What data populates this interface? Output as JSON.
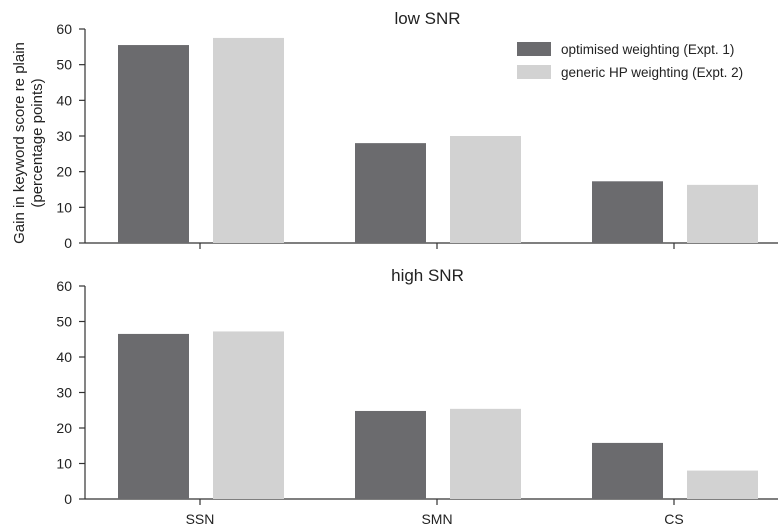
{
  "chart_data": {
    "type": "bar",
    "ylabel_line1": "Gain in keyword score re plain",
    "ylabel_line2": "(percentage points)",
    "categories": [
      "SSN",
      "SMN",
      "CS"
    ],
    "ylim": [
      0,
      60
    ],
    "yticks": [
      "0",
      "10",
      "20",
      "30",
      "40",
      "50",
      "60"
    ],
    "legend": {
      "placement": "top-right",
      "entries": [
        "optimised weighting (Expt. 1)",
        "generic HP weighting (Expt. 2)"
      ]
    },
    "colors": {
      "series1": "#6b6b6e",
      "series2": "#d2d2d2",
      "axis": "#333333"
    },
    "panels": [
      {
        "title": "low SNR",
        "series": [
          {
            "name": "optimised weighting (Expt. 1)",
            "values": [
              55.5,
              28,
              17.3
            ]
          },
          {
            "name": "generic HP weighting (Expt. 2)",
            "values": [
              57.5,
              30,
              16.3
            ]
          }
        ]
      },
      {
        "title": "high SNR",
        "series": [
          {
            "name": "optimised weighting (Expt. 1)",
            "values": [
              46.5,
              24.8,
              15.8
            ]
          },
          {
            "name": "generic HP weighting (Expt. 2)",
            "values": [
              47.2,
              25.4,
              8
            ]
          }
        ]
      }
    ]
  }
}
